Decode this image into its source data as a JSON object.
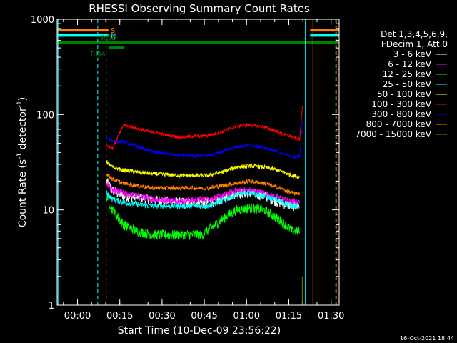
{
  "chart_data": {
    "type": "line",
    "title": "RHESSI Observing Summary Count Rates",
    "xlabel": "Start Time (10-Dec-09 23:56:22)",
    "ylabel_main": "Count Rate (s",
    "ylabel_sup1": "-1",
    "ylabel_mid": " detector",
    "ylabel_sup2": "-1",
    "ylabel_end": ")",
    "yscale": "log",
    "ylim": [
      1,
      1000
    ],
    "xlim_minutes": [
      -3.6,
      96.5
    ],
    "x_ticks": [
      {
        "label": "00:00",
        "m": 3.63
      },
      {
        "label": "00:15",
        "m": 18.63
      },
      {
        "label": "00:30",
        "m": 33.63
      },
      {
        "label": "00:45",
        "m": 48.63
      },
      {
        "label": "01:00",
        "m": 63.63
      },
      {
        "label": "01:15",
        "m": 78.63
      },
      {
        "label": "01:30",
        "m": 93.63
      }
    ],
    "y_ticks": [
      {
        "label": "1",
        "v": 1
      },
      {
        "label": "10",
        "v": 10
      },
      {
        "label": "100",
        "v": 100
      },
      {
        "label": "1000",
        "v": 1000
      }
    ],
    "legend": {
      "header1": "Det 1,3,4,5,6,9,",
      "header2": "FDecim 1, Att 0"
    },
    "series": [
      {
        "name": "3 - 6 keV",
        "color": "#ffffff",
        "x": [
          14,
          16,
          20,
          30,
          40,
          50,
          55,
          60,
          65,
          70,
          75,
          80,
          82.5
        ],
        "values": [
          20,
          16,
          14,
          13,
          12,
          12,
          13,
          15,
          15,
          14,
          12,
          11,
          11
        ]
      },
      {
        "name": "6 - 12 keV",
        "color": "#ff00ff",
        "x": [
          14,
          16,
          20,
          30,
          40,
          50,
          55,
          60,
          65,
          70,
          75,
          80,
          82.5
        ],
        "values": [
          19,
          16,
          15,
          13,
          12.5,
          13,
          14,
          16,
          16,
          15,
          13.5,
          12,
          12
        ]
      },
      {
        "name": "12 - 25 keV",
        "color": "#00ff00",
        "x": [
          14,
          16,
          20,
          25,
          30,
          40,
          48,
          55,
          60,
          65,
          70,
          75,
          80,
          82.5
        ],
        "values": [
          14,
          10,
          7,
          6,
          5.5,
          5.5,
          5.5,
          8,
          10,
          10.5,
          10,
          8,
          6,
          6
        ]
      },
      {
        "name": "25 - 50 keV",
        "color": "#00ffff",
        "x": [
          14,
          16,
          20,
          30,
          40,
          50,
          55,
          60,
          65,
          70,
          75,
          80,
          82.5
        ],
        "values": [
          15,
          13,
          12,
          11,
          11,
          11,
          12.5,
          14.5,
          15,
          14,
          12.5,
          11,
          11
        ]
      },
      {
        "name": "50 - 100 keV",
        "color": "#ffff00",
        "x": [
          14,
          16,
          20,
          30,
          40,
          50,
          55,
          60,
          65,
          70,
          75,
          80,
          82.5
        ],
        "values": [
          32,
          28,
          26,
          24,
          23,
          23,
          25,
          28,
          29,
          28,
          26,
          23,
          22
        ]
      },
      {
        "name": "100 - 300 keV",
        "color": "#ff0000",
        "x": [
          14,
          16,
          20,
          30,
          40,
          50,
          55,
          60,
          65,
          70,
          75,
          80,
          82.5,
          83.5
        ],
        "values": [
          48,
          44,
          78,
          65,
          58,
          60,
          66,
          75,
          78,
          74,
          65,
          58,
          55,
          130
        ]
      },
      {
        "name": "300 - 800 keV",
        "color": "#0000ff",
        "x": [
          14,
          16,
          20,
          30,
          40,
          50,
          55,
          60,
          65,
          70,
          75,
          80,
          82.5,
          83.5
        ],
        "values": [
          58,
          52,
          52,
          41,
          37,
          37,
          41,
          46,
          48,
          45,
          40,
          36,
          36,
          90
        ]
      },
      {
        "name": "800 - 7000 keV",
        "color": "#ff8000",
        "x": [
          14,
          16,
          20,
          30,
          40,
          50,
          55,
          60,
          65,
          70,
          75,
          80,
          82.5
        ],
        "values": [
          24,
          21,
          19,
          17,
          17,
          17,
          18,
          19,
          20,
          19,
          17,
          15,
          15
        ]
      },
      {
        "name": "7000 - 15000 keV",
        "color": "#808000",
        "x": [
          83.4
        ],
        "values": [
          2
        ]
      }
    ],
    "flag_bars": [
      {
        "label": "S",
        "color": "#ff8000",
        "y_val": 770,
        "x": [
          -3.6,
          14.6
        ]
      },
      {
        "label": "",
        "color": "#ff8000",
        "y_val": 770,
        "x": [
          86.2,
          96.5
        ]
      },
      {
        "label": "N",
        "color": "#00ffff",
        "y_val": 680,
        "x": [
          -3.6,
          14.6
        ]
      },
      {
        "label": "",
        "color": "#00ffff",
        "y_val": 680,
        "x": [
          86.2,
          96.5
        ]
      },
      {
        "label": "RD0",
        "color": "#008000",
        "y_val": 570,
        "x": [
          -3.6,
          96.5
        ]
      },
      {
        "label": "RD4",
        "color": "#008000",
        "y_val": 510,
        "x": [
          14.6,
          20.3
        ]
      }
    ],
    "vlines": [
      {
        "m": -3.3,
        "color": "#00ffff",
        "style": "solid"
      },
      {
        "m": 10.8,
        "color": "#00ffff",
        "style": "dashed"
      },
      {
        "m": 13.8,
        "color": "#ff8000",
        "style": "dashed"
      },
      {
        "m": 84.5,
        "color": "#00ffff",
        "style": "solid"
      },
      {
        "m": 87.2,
        "color": "#ff8000",
        "style": "solid"
      },
      {
        "m": 95.3,
        "color": "#00ffff",
        "style": "dashed"
      },
      {
        "m": 95.5,
        "color": "#ff8000",
        "style": "dashed"
      }
    ]
  },
  "footer": {
    "timestamp": "16-Oct-2021 18:44"
  }
}
